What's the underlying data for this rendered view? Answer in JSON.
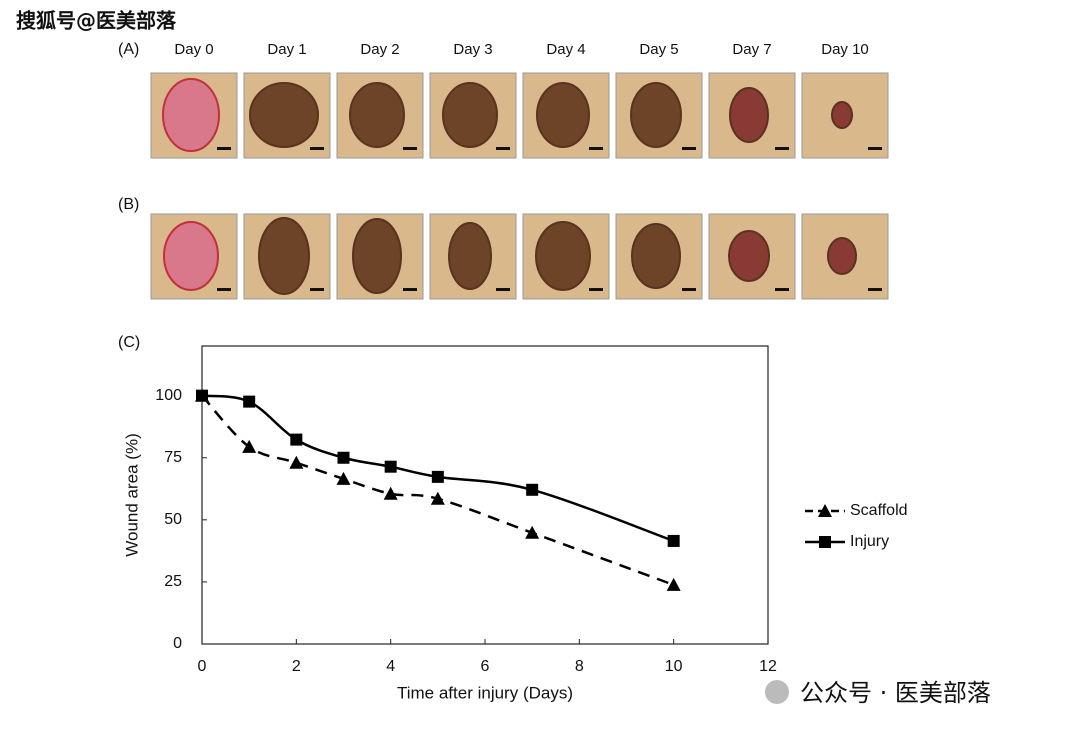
{
  "watermark_top": "搜狐号@医美部落",
  "watermark_bottom": "公众号 · 医美部落",
  "panels": {
    "a": "(A)",
    "b": "(B)",
    "c": "(C)"
  },
  "days": [
    "Day 0",
    "Day 1",
    "Day 2",
    "Day 3",
    "Day 4",
    "Day 5",
    "Day 7",
    "Day 10"
  ],
  "chart_data": {
    "type": "line",
    "xlabel": "Time after injury (Days)",
    "ylabel": "Wound area (%)",
    "x": [
      0,
      1,
      2,
      3,
      4,
      5,
      7,
      10
    ],
    "xlim": [
      0,
      12
    ],
    "xticks": [
      0,
      2,
      4,
      6,
      8,
      10,
      12
    ],
    "ylim": [
      0,
      120
    ],
    "yticks": [
      0,
      25,
      50,
      75,
      100
    ],
    "series": [
      {
        "name": "Scaffold",
        "color": "#000000",
        "dash": true,
        "marker": "triangle",
        "values": [
          100,
          79.4,
          73,
          66.5,
          60.5,
          58.5,
          44.8,
          23.8
        ]
      },
      {
        "name": "Injury",
        "color": "#000000",
        "dash": false,
        "marker": "square",
        "values": [
          100,
          97.6,
          82.3,
          75,
          71.4,
          67.3,
          62.1,
          41.5
        ]
      }
    ]
  }
}
